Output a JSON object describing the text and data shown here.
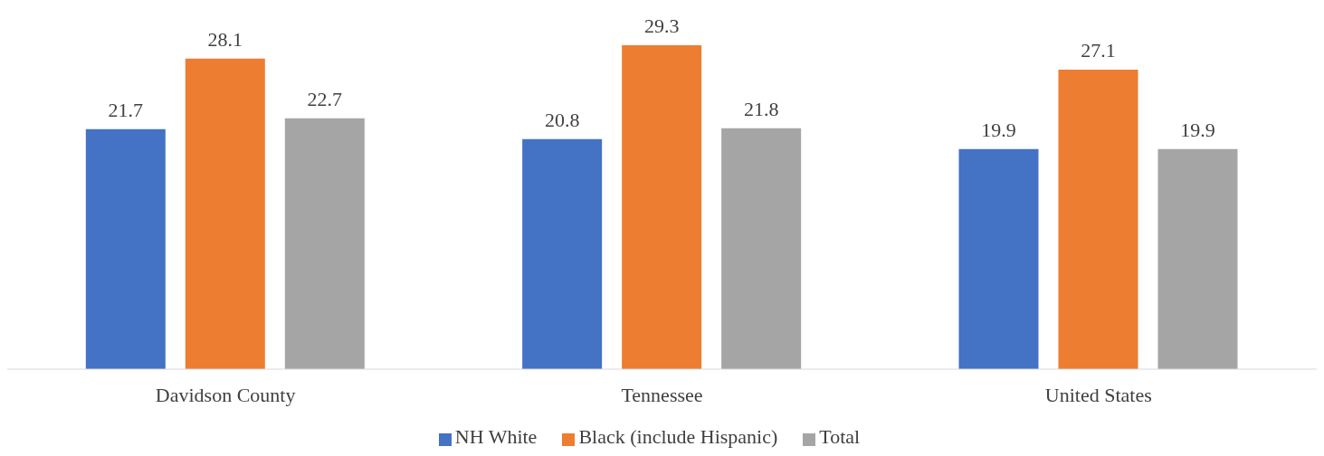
{
  "chart_data": {
    "type": "bar",
    "categories": [
      "Davidson County",
      "Tennessee",
      "United States"
    ],
    "series": [
      {
        "name": "NH White",
        "color": "#4472c4",
        "values": [
          21.7,
          20.8,
          19.9
        ]
      },
      {
        "name": "Black (include Hispanic)",
        "color": "#ed7d31",
        "values": [
          28.1,
          29.3,
          27.1
        ]
      },
      {
        "name": "Total",
        "color": "#a5a5a5",
        "values": [
          22.7,
          21.8,
          19.9
        ]
      }
    ],
    "data_labels": true,
    "legend": "bottom",
    "grid": false
  }
}
